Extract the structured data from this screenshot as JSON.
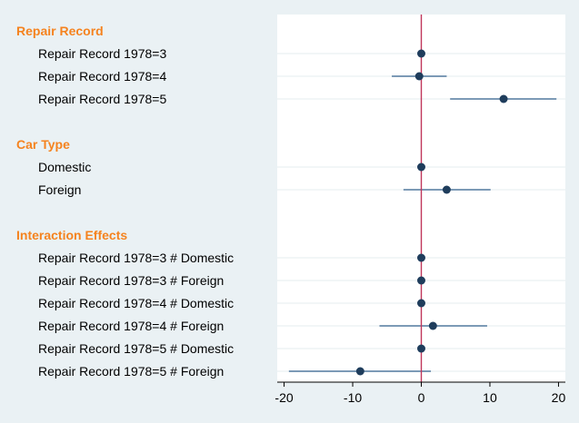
{
  "chart_data": {
    "type": "coefficient-plot",
    "orientation": "horizontal",
    "xlim": [
      -21,
      21
    ],
    "xticks": [
      -20,
      -10,
      0,
      10,
      20
    ],
    "reference_line": {
      "x": 0,
      "color": "#c0365a"
    },
    "colors": {
      "background": "#eaf1f4",
      "plot_background": "#ffffff",
      "group_title": "#f5831f",
      "marker": "#1f3d5c",
      "ci_line": "#2e5d8a",
      "gridline": "#e6ecef"
    },
    "grid": "horizontal",
    "groups": [
      {
        "title": "Repair Record",
        "rows": [
          {
            "label": "Repair Record 1978=3",
            "estimate": 0,
            "ci": [
              0,
              0
            ]
          },
          {
            "label": "Repair Record 1978=4",
            "estimate": -0.3,
            "ci": [
              -4.3,
              3.7
            ]
          },
          {
            "label": "Repair Record 1978=5",
            "estimate": 12,
            "ci": [
              4.2,
              19.7
            ]
          }
        ]
      },
      {
        "title": "Car Type",
        "rows": [
          {
            "label": "Domestic",
            "estimate": 0,
            "ci": [
              0,
              0
            ]
          },
          {
            "label": "Foreign",
            "estimate": 3.7,
            "ci": [
              -2.6,
              10.1
            ]
          }
        ]
      },
      {
        "title": "Interaction Effects",
        "rows": [
          {
            "label": "Repair Record 1978=3 # Domestic",
            "estimate": 0,
            "ci": [
              0,
              0
            ]
          },
          {
            "label": "Repair Record 1978=3 # Foreign",
            "estimate": 0,
            "ci": [
              0,
              0
            ]
          },
          {
            "label": "Repair Record 1978=4 # Domestic",
            "estimate": 0,
            "ci": [
              0,
              0
            ]
          },
          {
            "label": "Repair Record 1978=4 # Foreign",
            "estimate": 1.7,
            "ci": [
              -6.1,
              9.6
            ]
          },
          {
            "label": "Repair Record 1978=5 # Domestic",
            "estimate": 0,
            "ci": [
              0,
              0
            ]
          },
          {
            "label": "Repair Record 1978=5 # Foreign",
            "estimate": -8.9,
            "ci": [
              -19.3,
              1.4
            ]
          }
        ]
      }
    ]
  }
}
